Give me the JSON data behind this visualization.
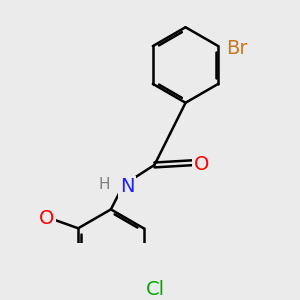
{
  "background_color": "#ebebeb",
  "bond_color": "#000000",
  "bond_width": 1.8,
  "dbo": 0.055,
  "atom_colors": {
    "Br": "#c87820",
    "N": "#2020ff",
    "O": "#ff0000",
    "Cl": "#00aa00",
    "H": "#808080"
  },
  "font_size": 14,
  "font_size_h": 11,
  "xlim": [
    -1.2,
    3.2
  ],
  "ylim": [
    -3.2,
    2.2
  ]
}
